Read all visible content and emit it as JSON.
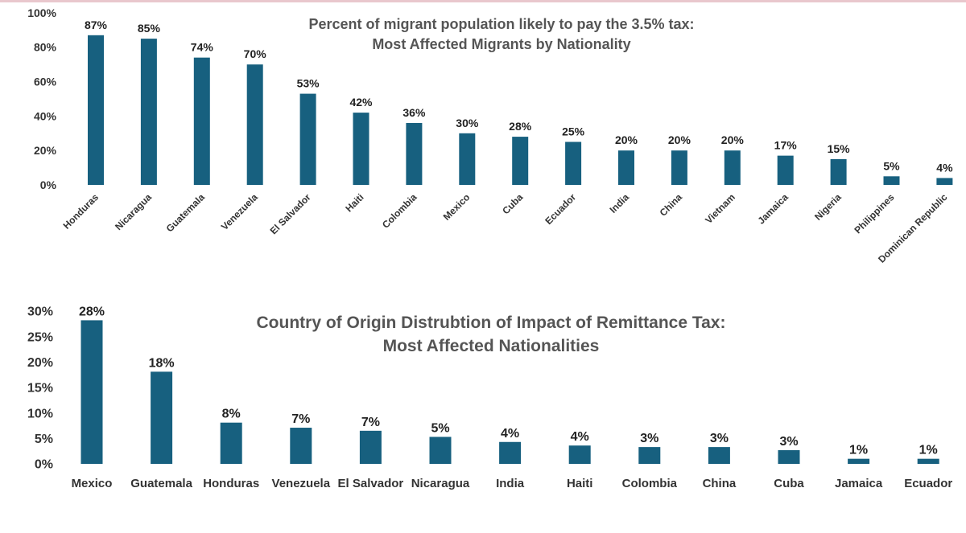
{
  "chart_data": [
    {
      "type": "bar",
      "title_lines": [
        "Percent of migrant population likely to pay the 3.5% tax:",
        "Most Affected Migrants by Nationality"
      ],
      "categories": [
        "Honduras",
        "Nicaragua",
        "Guatemala",
        "Venezuela",
        "El Salvador",
        "Haiti",
        "Colombia",
        "Mexico",
        "Cuba",
        "Ecuador",
        "India",
        "China",
        "Vietnam",
        "Jamaica",
        "Nigeria",
        "Philippines",
        "Dominican Republic"
      ],
      "values": [
        87,
        85,
        74,
        70,
        53,
        42,
        36,
        30,
        28,
        25,
        20,
        20,
        20,
        17,
        15,
        5,
        4
      ],
      "data_labels": [
        "87%",
        "85%",
        "74%",
        "70%",
        "53%",
        "42%",
        "36%",
        "30%",
        "28%",
        "25%",
        "20%",
        "20%",
        "20%",
        "17%",
        "15%",
        "5%",
        "4%"
      ],
      "ylim": [
        0,
        100
      ],
      "yticks": [
        "0%",
        "20%",
        "40%",
        "60%",
        "80%",
        "100%"
      ],
      "bar_color": "#17607f",
      "xlabel": "",
      "ylabel": "",
      "grid": false,
      "legend": "none"
    },
    {
      "type": "bar",
      "title_lines": [
        "Country of Origin Distrubtion of Impact of Remittance Tax:",
        "Most Affected Nationalities"
      ],
      "categories": [
        "Mexico",
        "Guatemala",
        "Honduras",
        "Venezuela",
        "El Salvador",
        "Nicaragua",
        "India",
        "Haiti",
        "Colombia",
        "China",
        "Cuba",
        "Jamaica",
        "Ecuador"
      ],
      "values": [
        28.2,
        18.1,
        8.1,
        7.1,
        6.5,
        5.3,
        4.3,
        3.6,
        3.3,
        3.3,
        2.7,
        1.0,
        1.0
      ],
      "data_labels": [
        "28%",
        "18%",
        "8%",
        "7%",
        "7%",
        "5%",
        "4%",
        "4%",
        "3%",
        "3%",
        "3%",
        "1%",
        "1%"
      ],
      "ylim": [
        0,
        30
      ],
      "yticks": [
        "0%",
        "5%",
        "10%",
        "15%",
        "20%",
        "25%",
        "30%"
      ],
      "bar_color": "#17607f",
      "xlabel": "",
      "ylabel": "",
      "grid": false,
      "legend": "none"
    }
  ]
}
